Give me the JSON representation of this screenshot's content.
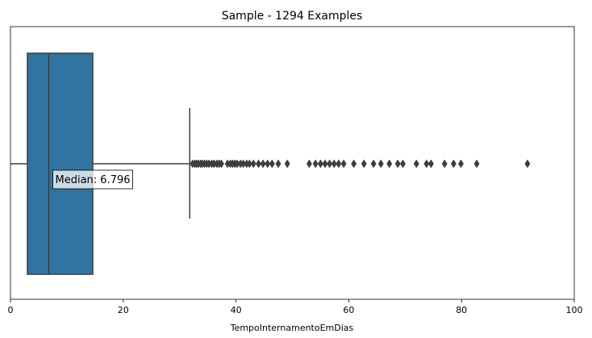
{
  "chart_data": {
    "type": "box",
    "title": "Sample - 1294 Examples",
    "xlabel": "TempoInternamentoEmDias",
    "ylabel": "",
    "xlim": [
      0,
      100
    ],
    "xticks": [
      0,
      20,
      40,
      60,
      80,
      100
    ],
    "grid": false,
    "box": {
      "whisker_low": 0,
      "q1": 3,
      "median": 6.796,
      "q3": 14.6,
      "whisker_high": 31.8,
      "color": "#3274a1",
      "line_color": "#3d3d3d"
    },
    "median_annotation": "Median: 6.796",
    "outliers": [
      32.3,
      32.7,
      33.0,
      33.3,
      33.7,
      34.0,
      34.4,
      34.8,
      35.2,
      35.7,
      36.1,
      36.6,
      37.0,
      37.4,
      38.5,
      39.0,
      39.4,
      39.8,
      40.2,
      40.8,
      41.3,
      41.9,
      42.4,
      43.1,
      44.0,
      44.8,
      45.6,
      46.4,
      47.5,
      49.1,
      53.0,
      54.1,
      55.0,
      55.8,
      56.6,
      57.4,
      58.2,
      59.1,
      60.9,
      62.7,
      64.4,
      65.7,
      67.2,
      68.7,
      69.6,
      72.0,
      73.8,
      74.6,
      77.0,
      78.6,
      79.9,
      82.7,
      91.7
    ]
  }
}
